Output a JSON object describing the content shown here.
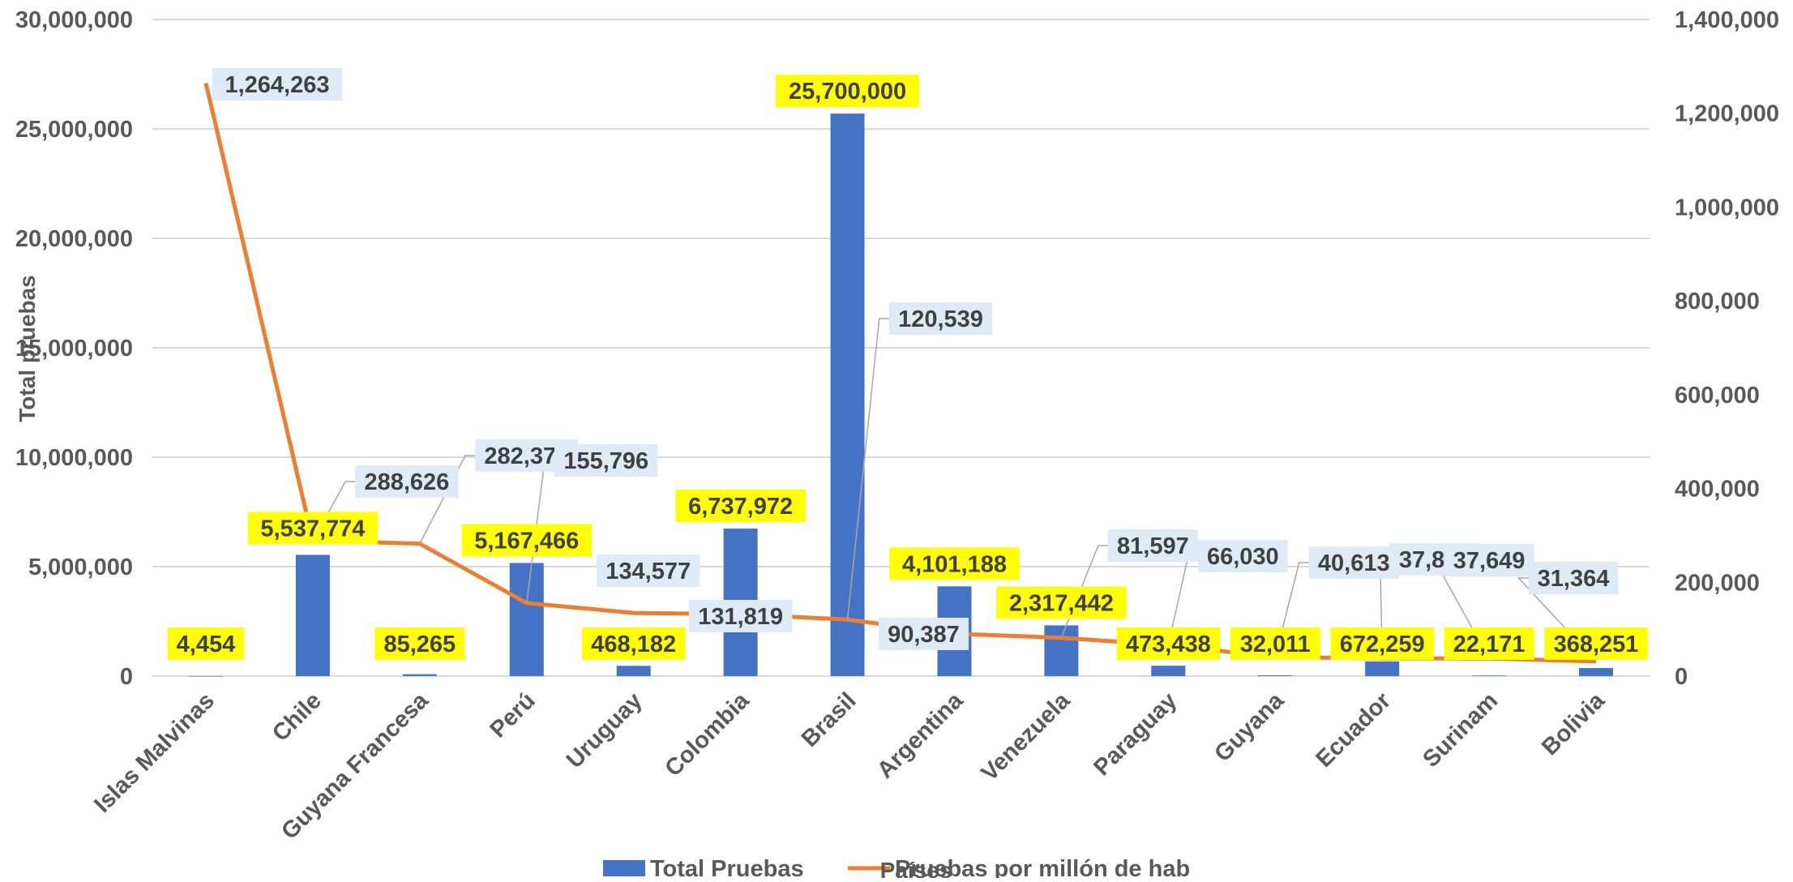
{
  "chart_data": {
    "type": "bar",
    "title": "",
    "xlabel": "Países",
    "ylabel": "Total pruebas",
    "y2label": "",
    "ylim": [
      0,
      30000000
    ],
    "y2lim": [
      0,
      1400000
    ],
    "yticks": [
      "0",
      "5,000,000",
      "10,000,000",
      "15,000,000",
      "20,000,000",
      "25,000,000",
      "30,000,000"
    ],
    "y2ticks": [
      "0",
      "200,000",
      "400,000",
      "600,000",
      "800,000",
      "1,000,000",
      "1,200,000",
      "1,400,000"
    ],
    "grid": true,
    "legend_position": "bottom",
    "categories": [
      "Islas Malvinas",
      "Chile",
      "Guyana Francesa",
      "Perú",
      "Uruguay",
      "Colombia",
      "Brasil",
      "Argentina",
      "Venezuela",
      "Paraguay",
      "Guyana",
      "Ecuador",
      "Surinam",
      "Bolivia"
    ],
    "series": [
      {
        "name": "Total Pruebas",
        "type": "bar",
        "axis": "primary",
        "color": "#4472C4",
        "label_bg": "#FFFF00",
        "values": [
          4454,
          5537774,
          85265,
          5167466,
          468182,
          6737972,
          25700000,
          4101188,
          2317442,
          473438,
          32011,
          672259,
          22171,
          368251
        ],
        "labels": [
          "4,454",
          "5,537,774",
          "85,265",
          "5,167,466",
          "468,182",
          "6,737,972",
          "25,700,000",
          "4,101,188",
          "2,317,442",
          "473,438",
          "32,011",
          "672,259",
          "22,171",
          "368,251"
        ]
      },
      {
        "name": "Pruebas por millón de hab",
        "type": "line",
        "axis": "secondary",
        "color": "#ED7D31",
        "label_bg": "#DEEBF7",
        "values": [
          1264263,
          288626,
          282378,
          155796,
          134577,
          131819,
          120539,
          90387,
          81597,
          66030,
          40613,
          37853,
          37649,
          31364
        ],
        "labels": [
          "1,264,263",
          "288,626",
          "282,378",
          "155,796",
          "134,577",
          "131,819",
          "120,539",
          "90,387",
          "81,597",
          "66,030",
          "40,613",
          "37,853",
          "37,649",
          "31,364"
        ]
      }
    ]
  }
}
